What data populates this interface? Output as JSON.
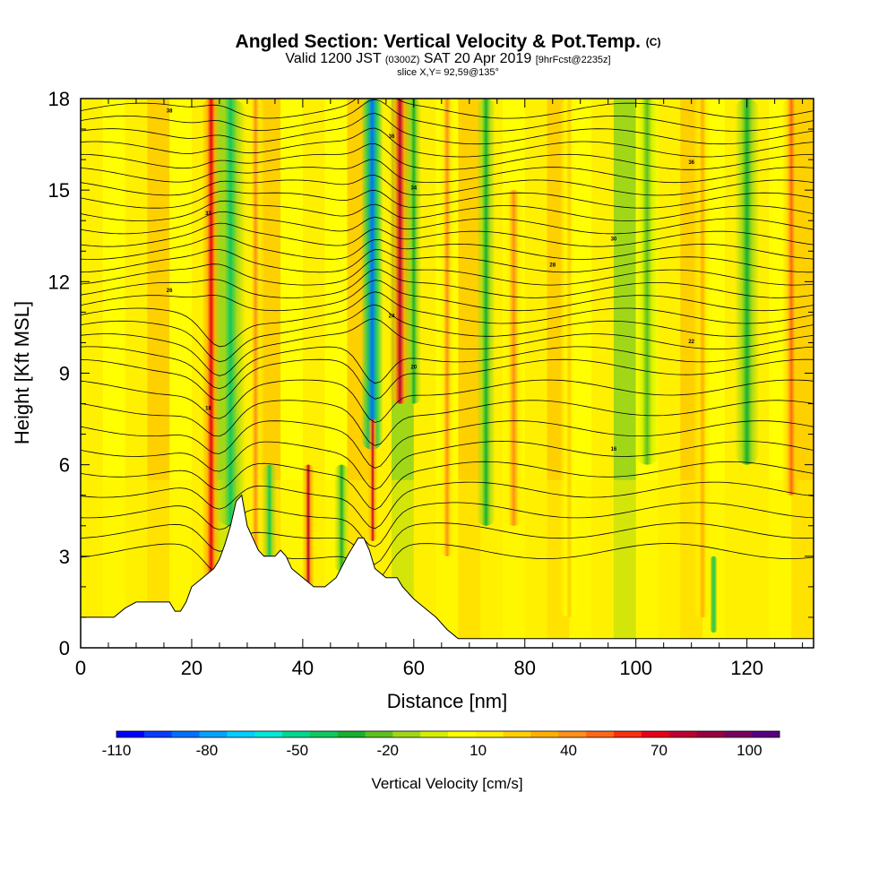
{
  "title": {
    "line1": "Angled Section: Vertical Velocity & Pot.Temp.",
    "line1_mark": "(C)",
    "line2_valid": "Valid 1200 JST",
    "line2_utc": "(0300Z)",
    "line2_date": "SAT 20 Apr 2019",
    "line2_fcst": "[9hrFcst@2235z]",
    "line3": "slice X,Y= 92,59@135°"
  },
  "chart_data": {
    "type": "heatmap",
    "xlabel": "Distance [nm]",
    "ylabel": "Height [Kft MSL]",
    "xlim": [
      0,
      132
    ],
    "ylim": [
      0,
      18
    ],
    "x_ticks": [
      0,
      20,
      40,
      60,
      80,
      100,
      120
    ],
    "y_ticks": [
      0,
      3,
      6,
      9,
      12,
      15,
      18
    ],
    "colorbar": {
      "title": "Vertical Velocity [cm/s]",
      "range": [
        -110,
        110
      ],
      "labels": [
        -110,
        -80,
        -50,
        -20,
        10,
        40,
        70,
        100
      ],
      "colors": [
        "#0000ff",
        "#0a3cff",
        "#0070ff",
        "#00a4ff",
        "#00d0ff",
        "#00e8d8",
        "#00d890",
        "#10c860",
        "#18b030",
        "#5cc020",
        "#a0d818",
        "#d4f000",
        "#ffff00",
        "#fff000",
        "#ffd000",
        "#ffb000",
        "#ff9018",
        "#ff6818",
        "#f83010",
        "#e80018",
        "#c00030",
        "#980040",
        "#780060",
        "#580080"
      ]
    },
    "terrain_profile_kft": [
      [
        0,
        1
      ],
      [
        6,
        1
      ],
      [
        8,
        1.3
      ],
      [
        10,
        1.5
      ],
      [
        16,
        1.5
      ],
      [
        17,
        1.2
      ],
      [
        18,
        1.2
      ],
      [
        19,
        1.5
      ],
      [
        20,
        2
      ],
      [
        22,
        2.3
      ],
      [
        24,
        2.6
      ],
      [
        25,
        2.9
      ],
      [
        26,
        3.4
      ],
      [
        27,
        4
      ],
      [
        28,
        4.8
      ],
      [
        29,
        5
      ],
      [
        30,
        4
      ],
      [
        31,
        3.6
      ],
      [
        32,
        3.2
      ],
      [
        33,
        3
      ],
      [
        35,
        3
      ],
      [
        36,
        3.2
      ],
      [
        37,
        3
      ],
      [
        38,
        2.6
      ],
      [
        40,
        2.3
      ],
      [
        42,
        2
      ],
      [
        44,
        2
      ],
      [
        46,
        2.3
      ],
      [
        48,
        3
      ],
      [
        50,
        3.6
      ],
      [
        51,
        3.6
      ],
      [
        52,
        3.2
      ],
      [
        53,
        2.6
      ],
      [
        55,
        2.3
      ],
      [
        57,
        2.3
      ],
      [
        58,
        2
      ],
      [
        60,
        1.6
      ],
      [
        62,
        1.3
      ],
      [
        64,
        1
      ],
      [
        66,
        0.6
      ],
      [
        68,
        0.3
      ],
      [
        70,
        0.3
      ],
      [
        132,
        0.3
      ]
    ],
    "velocity_features": [
      {
        "x": 23.5,
        "w": 1.5,
        "y0": 0.5,
        "y1": 18,
        "value": 70
      },
      {
        "x": 27,
        "w": 2.5,
        "y0": 4,
        "y1": 18,
        "value": -40
      },
      {
        "x": 31.5,
        "w": 1.5,
        "y0": 3,
        "y1": 18,
        "value": 40
      },
      {
        "x": 34,
        "w": 1.2,
        "y0": 2.5,
        "y1": 6,
        "value": -40
      },
      {
        "x": 41,
        "w": 1,
        "y0": 2,
        "y1": 6,
        "value": 80
      },
      {
        "x": 47,
        "w": 1.2,
        "y0": 2.5,
        "y1": 6,
        "value": -30
      },
      {
        "x": 52.5,
        "w": 1.8,
        "y0": 6.5,
        "y1": 18,
        "value": -90
      },
      {
        "x": 52.6,
        "w": 0.8,
        "y0": 3.5,
        "y1": 7.5,
        "value": 80
      },
      {
        "x": 57.5,
        "w": 1.8,
        "y0": 8,
        "y1": 18,
        "value": 80
      },
      {
        "x": 60,
        "w": 1.2,
        "y0": 8,
        "y1": 18,
        "value": -30
      },
      {
        "x": 66,
        "w": 1.5,
        "y0": 3,
        "y1": 18,
        "value": 40
      },
      {
        "x": 73,
        "w": 1.5,
        "y0": 4,
        "y1": 18,
        "value": -30
      },
      {
        "x": 78,
        "w": 2,
        "y0": 4,
        "y1": 15,
        "value": 40
      },
      {
        "x": 88,
        "w": 1.5,
        "y0": 1,
        "y1": 18,
        "value": 20
      },
      {
        "x": 102,
        "w": 2,
        "y0": 6,
        "y1": 18,
        "value": -20
      },
      {
        "x": 112,
        "w": 1.5,
        "y0": 1,
        "y1": 18,
        "value": 30
      },
      {
        "x": 120,
        "w": 2,
        "y0": 6,
        "y1": 18,
        "value": -30
      },
      {
        "x": 114,
        "w": 0.6,
        "y0": 0.5,
        "y1": 3,
        "value": -50
      },
      {
        "x": 128,
        "w": 1.5,
        "y0": 5,
        "y1": 18,
        "value": 50
      }
    ],
    "theta_contour_labels": [
      "38",
      "36",
      "36",
      "34",
      "32",
      "30",
      "28",
      "26",
      "24",
      "22",
      "20",
      "18",
      "16"
    ]
  }
}
